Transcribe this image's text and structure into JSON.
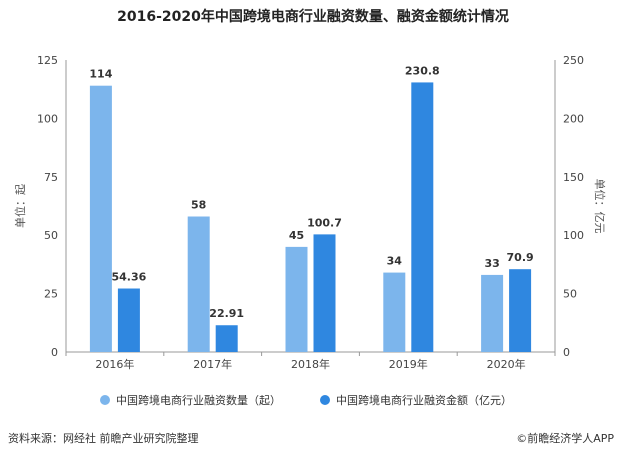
{
  "title": "2016-2020年中国跨境电商行业融资数量、融资金额统计情况",
  "source": "资料来源：网经社 前瞻产业研究院整理",
  "brand": "©前瞻经济学人APP",
  "chart_data": {
    "type": "bar",
    "categories": [
      "2016年",
      "2017年",
      "2018年",
      "2019年",
      "2020年"
    ],
    "series": [
      {
        "name": "中国跨境电商行业融资数量（起）",
        "values": [
          114,
          58,
          45,
          34,
          33
        ],
        "axis": "left",
        "labels": [
          "114",
          "58",
          "45",
          "34",
          "33"
        ],
        "color": "#7cb5ec"
      },
      {
        "name": "中国跨境电商行业融资金额（亿元）",
        "values": [
          54.36,
          22.91,
          100.7,
          230.8,
          70.9
        ],
        "axis": "right",
        "labels": [
          "54.36",
          "22.91",
          "100.7",
          "230.8",
          "70.9"
        ],
        "color": "#2f87e0"
      }
    ],
    "ylabel": "单位：起",
    "ylabel_right": "单位：亿元",
    "ylim": [
      0,
      125
    ],
    "ylim_right": [
      0,
      250
    ],
    "yticks": [
      "0",
      "25",
      "50",
      "75",
      "100",
      "125"
    ],
    "yticks_right": [
      "0",
      "50",
      "100",
      "150",
      "200",
      "250"
    ],
    "grid": false,
    "legend": "bottom"
  }
}
